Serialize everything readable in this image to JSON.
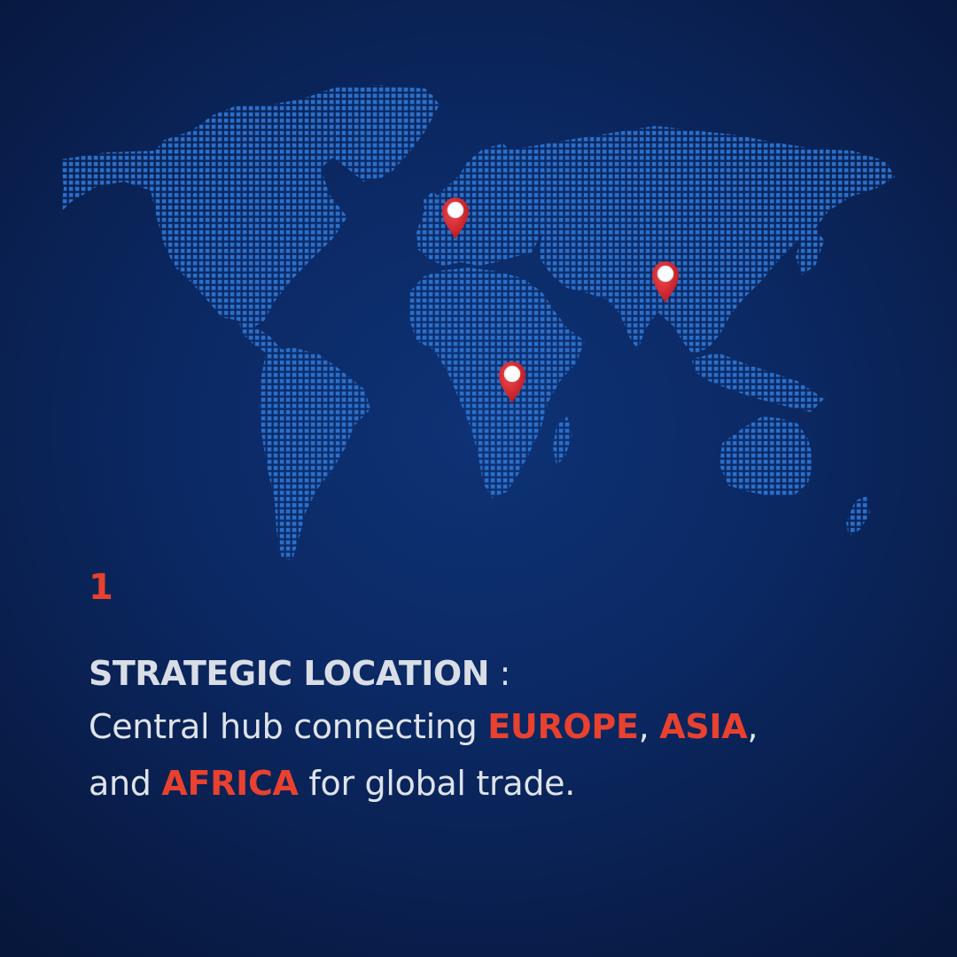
{
  "map": {
    "dot_color": "#2a6fc9",
    "pin_color": "#d9272e",
    "pins": [
      {
        "name": "europe-pin"
      },
      {
        "name": "asia-pin"
      },
      {
        "name": "africa-pin"
      }
    ]
  },
  "number": "1",
  "headline": {
    "title": "STRATEGIC LOCATION",
    "colon": " :"
  },
  "body": {
    "line1_text": "Central hub connecting ",
    "region1": "EUROPE",
    "sep1": ", ",
    "region2": "ASIA",
    "sep2": ",",
    "line2_prefix": "and ",
    "region3": "AFRICA",
    "line2_suffix": " for global trade."
  },
  "colors": {
    "accent": "#e8412f",
    "background": "#0b2862",
    "text": "#dfe3ea"
  }
}
